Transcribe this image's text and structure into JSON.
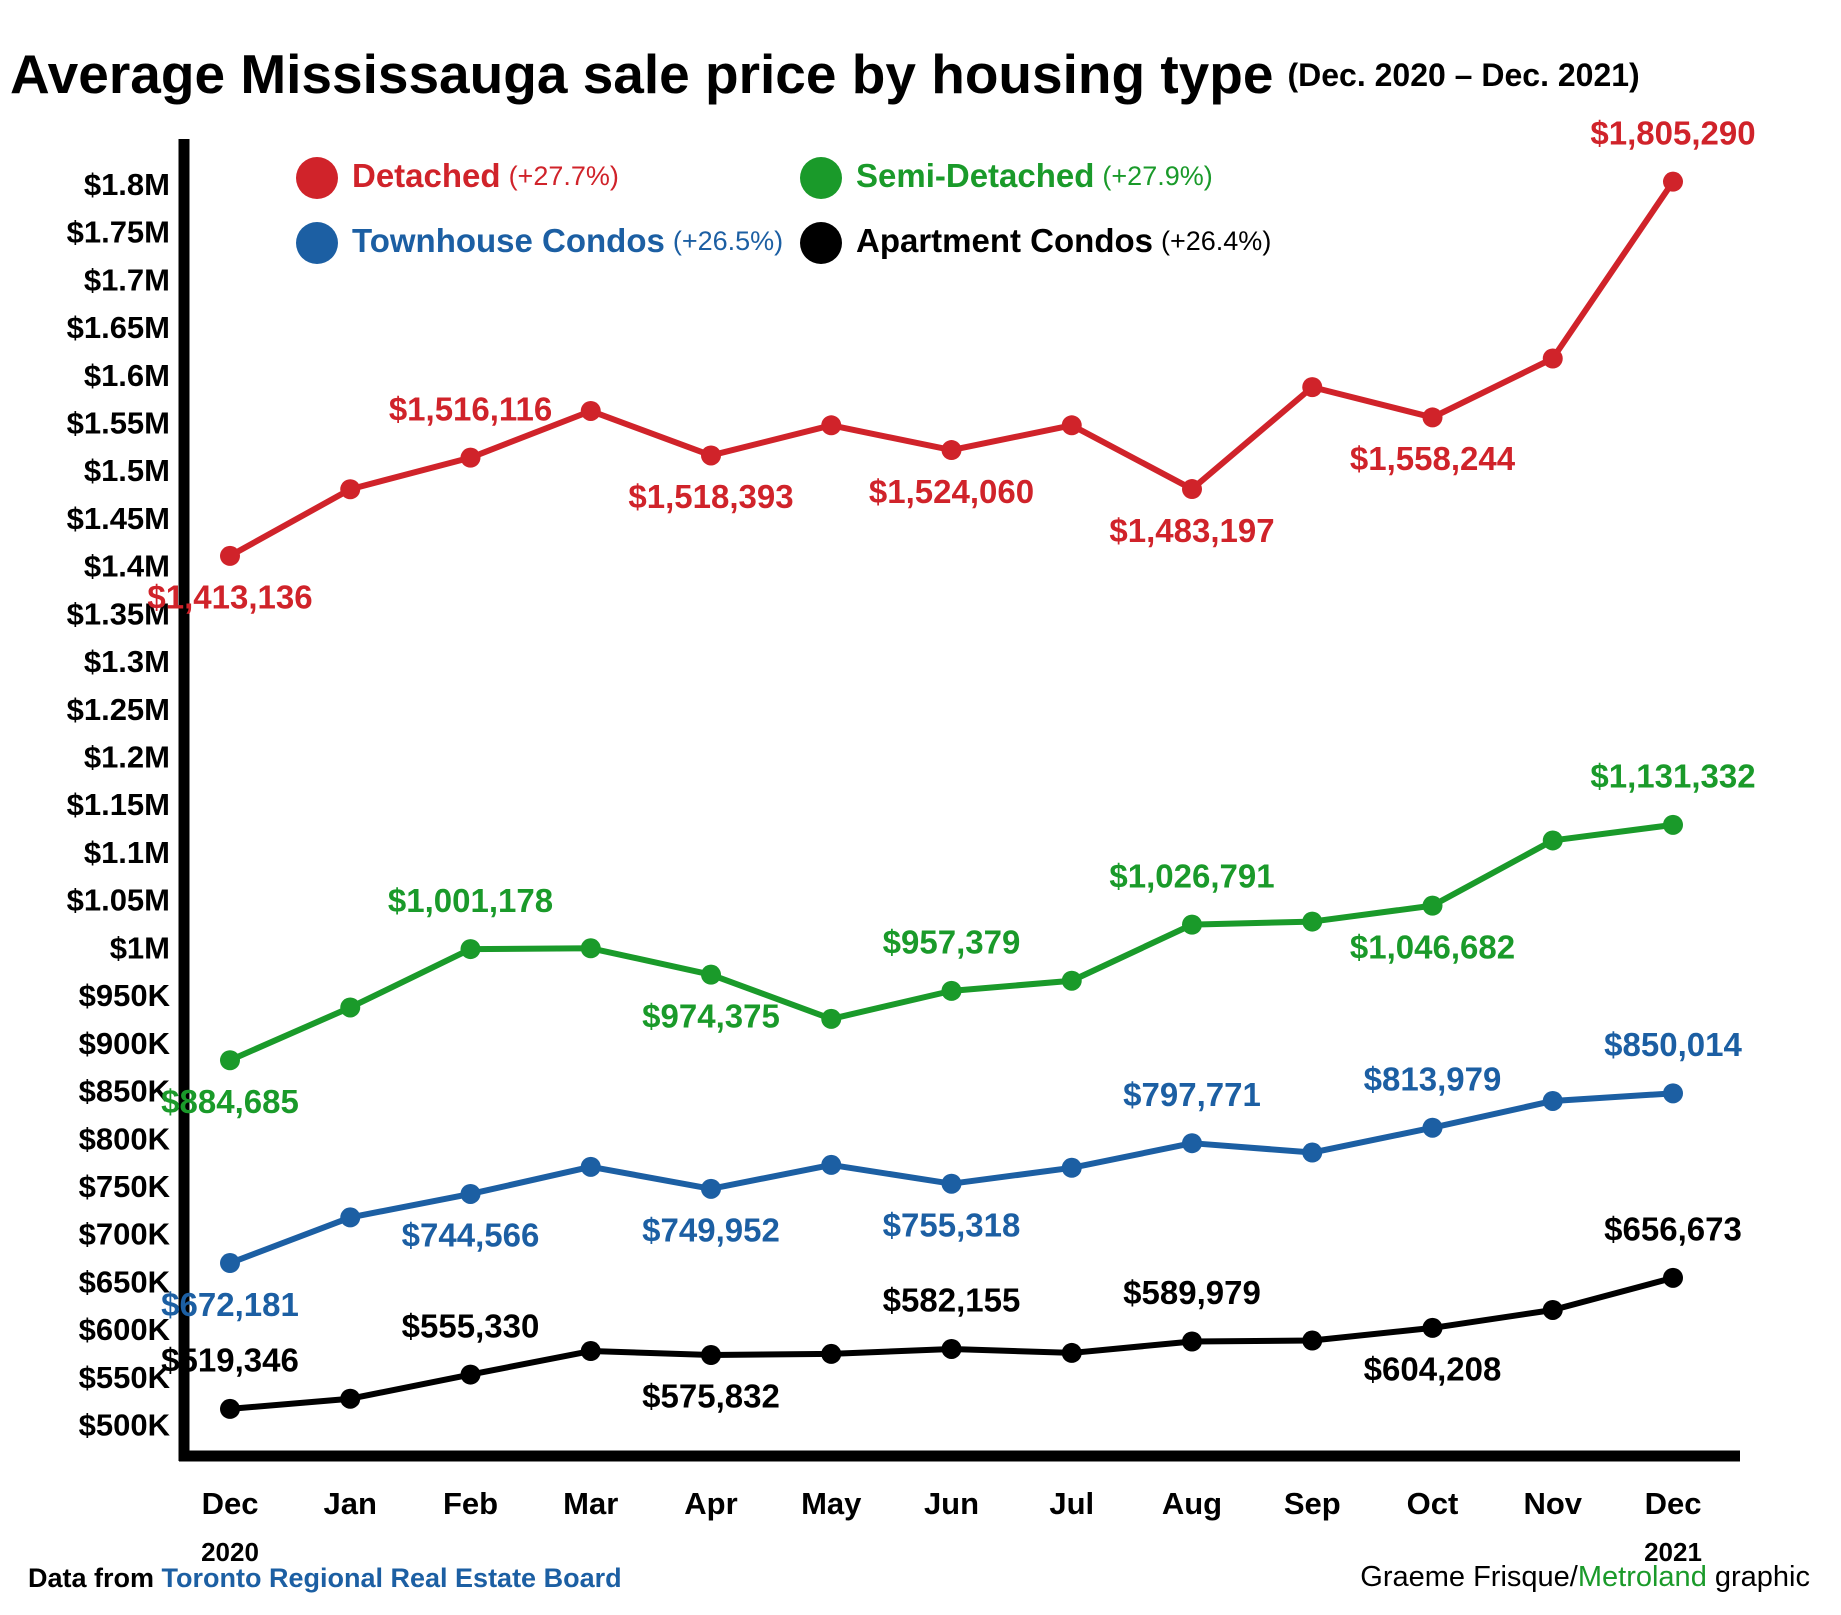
{
  "chart_data": {
    "type": "line",
    "title": "Average Mississauga sale price by housing type",
    "subtitle": "(Dec. 2020 – Dec. 2021)",
    "categories": [
      "Dec",
      "Jan",
      "Feb",
      "Mar",
      "Apr",
      "May",
      "Jun",
      "Jul",
      "Aug",
      "Sep",
      "Oct",
      "Nov",
      "Dec"
    ],
    "category_years": [
      "2020",
      null,
      null,
      null,
      null,
      null,
      null,
      null,
      null,
      null,
      null,
      null,
      "2021"
    ],
    "ylim": [
      470000,
      1850000
    ],
    "yticks": [
      {
        "value": 500000,
        "label": "$500K"
      },
      {
        "value": 550000,
        "label": "$550K"
      },
      {
        "value": 600000,
        "label": "$600K"
      },
      {
        "value": 650000,
        "label": "$650K"
      },
      {
        "value": 700000,
        "label": "$700K"
      },
      {
        "value": 750000,
        "label": "$750K"
      },
      {
        "value": 800000,
        "label": "$800K"
      },
      {
        "value": 850000,
        "label": "$850K"
      },
      {
        "value": 900000,
        "label": "$900K"
      },
      {
        "value": 950000,
        "label": "$950K"
      },
      {
        "value": 1000000,
        "label": "$1M"
      },
      {
        "value": 1050000,
        "label": "$1.05M"
      },
      {
        "value": 1100000,
        "label": "$1.1M"
      },
      {
        "value": 1150000,
        "label": "$1.15M"
      },
      {
        "value": 1200000,
        "label": "$1.2M"
      },
      {
        "value": 1250000,
        "label": "$1.25M"
      },
      {
        "value": 1300000,
        "label": "$1.3M"
      },
      {
        "value": 1350000,
        "label": "$1.35M"
      },
      {
        "value": 1400000,
        "label": "$1.4M"
      },
      {
        "value": 1450000,
        "label": "$1.45M"
      },
      {
        "value": 1500000,
        "label": "$1.5M"
      },
      {
        "value": 1550000,
        "label": "$1.55M"
      },
      {
        "value": 1600000,
        "label": "$1.6M"
      },
      {
        "value": 1650000,
        "label": "$1.65M"
      },
      {
        "value": 1700000,
        "label": "$1.7M"
      },
      {
        "value": 1750000,
        "label": "$1.75M"
      },
      {
        "value": 1800000,
        "label": "$1.8M"
      }
    ],
    "grid": false,
    "series": [
      {
        "name": "Detached",
        "change": "(+27.7%)",
        "color": "#d0232a",
        "values": [
          1413136,
          1483000,
          1516116,
          1565000,
          1518393,
          1550000,
          1524060,
          1550000,
          1483197,
          1590000,
          1558244,
          1620000,
          1805290
        ],
        "value_labels": [
          "$1,413,136",
          null,
          "$1,516,116",
          null,
          "$1,518,393",
          null,
          "$1,524,060",
          null,
          "$1,483,197",
          null,
          "$1,558,244",
          null,
          "$1,805,290"
        ]
      },
      {
        "name": "Semi-Detached",
        "change": "(+27.9%)",
        "color": "#1a9a2a",
        "values": [
          884685,
          940000,
          1001178,
          1002000,
          974375,
          928000,
          957379,
          968000,
          1026791,
          1030000,
          1046682,
          1115000,
          1131332
        ],
        "value_labels": [
          "$884,685",
          null,
          "$1,001,178",
          null,
          "$974,375",
          null,
          "$957,379",
          null,
          "$1,026,791",
          null,
          "$1,046,682",
          null,
          "$1,131,332"
        ]
      },
      {
        "name": "Townhouse Condos",
        "change": "(+26.5%)",
        "color": "#1c5fa3",
        "values": [
          672181,
          720000,
          744566,
          773000,
          749952,
          775000,
          755318,
          772000,
          797771,
          788000,
          813979,
          842000,
          850014
        ],
        "value_labels": [
          "$672,181",
          null,
          "$744,566",
          null,
          "$749,952",
          null,
          "$755,318",
          null,
          "$797,771",
          null,
          "$813,979",
          null,
          "$850,014"
        ]
      },
      {
        "name": "Apartment Condos",
        "change": "(+26.4%)",
        "color": "#000000",
        "values": [
          519346,
          530000,
          555330,
          580000,
          575832,
          577000,
          582155,
          578000,
          589979,
          591000,
          604208,
          623000,
          656673
        ],
        "value_labels": [
          "$519,346",
          null,
          "$555,330",
          null,
          "$575,832",
          null,
          "$582,155",
          null,
          "$589,979",
          null,
          "$604,208",
          null,
          "$656,673"
        ]
      }
    ],
    "source_prefix": "Data from ",
    "source": "Toronto Regional Real Estate Board",
    "credit_author": "Graeme Frisque/",
    "credit_org": "Metroland",
    "credit_suffix": " graphic"
  }
}
